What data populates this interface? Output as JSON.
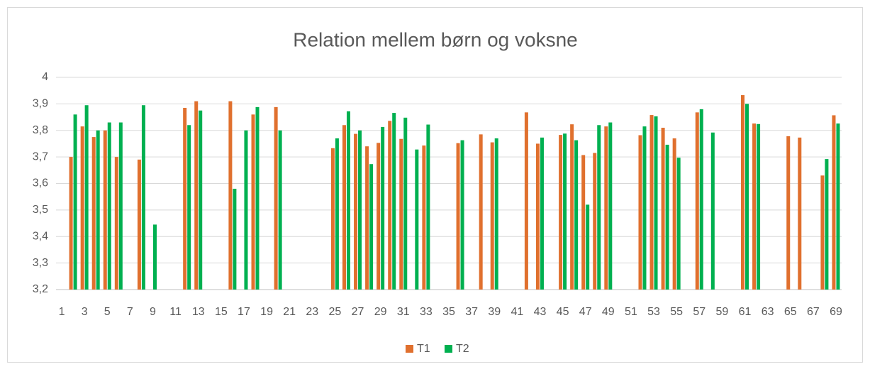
{
  "chart_data": {
    "type": "bar",
    "title": "Relation mellem børn og voksne",
    "categories": [
      1,
      null,
      3,
      null,
      5,
      null,
      7,
      null,
      9,
      null,
      11,
      null,
      13,
      null,
      15,
      null,
      17,
      null,
      19,
      null,
      21,
      null,
      23,
      null,
      25,
      null,
      27,
      null,
      29,
      null,
      31,
      null,
      33,
      null,
      35,
      null,
      37,
      null,
      39,
      null,
      41,
      null,
      43,
      null,
      45,
      null,
      47,
      null,
      49,
      null,
      51,
      null,
      53,
      null,
      55,
      null,
      57,
      null,
      59,
      null,
      61,
      null,
      63,
      null,
      65,
      null,
      67,
      null,
      69
    ],
    "series": [
      {
        "name": "T1",
        "color": "#e0702e",
        "values": [
          null,
          3.7,
          3.815,
          3.775,
          3.8,
          3.7,
          null,
          3.69,
          null,
          null,
          null,
          3.885,
          3.91,
          null,
          null,
          3.91,
          null,
          3.86,
          null,
          3.888,
          null,
          null,
          null,
          null,
          3.733,
          3.82,
          3.787,
          3.74,
          3.753,
          3.836,
          3.768,
          null,
          3.743,
          null,
          null,
          3.752,
          null,
          3.785,
          3.755,
          null,
          null,
          3.868,
          3.75,
          null,
          3.783,
          3.823,
          3.707,
          3.715,
          3.815,
          null,
          null,
          3.782,
          3.858,
          3.81,
          3.77,
          null,
          3.868,
          null,
          null,
          null,
          3.933,
          3.826,
          null,
          null,
          3.778,
          3.773,
          null,
          3.63,
          3.857
        ]
      },
      {
        "name": "T2",
        "color": "#00b050",
        "values": [
          null,
          3.86,
          3.895,
          3.8,
          3.83,
          3.83,
          null,
          3.895,
          3.445,
          null,
          null,
          3.82,
          3.875,
          null,
          null,
          3.58,
          3.8,
          3.888,
          null,
          3.8,
          null,
          null,
          null,
          null,
          3.77,
          3.872,
          3.8,
          3.673,
          3.813,
          3.866,
          3.848,
          3.728,
          3.822,
          null,
          null,
          3.763,
          null,
          null,
          3.77,
          null,
          null,
          null,
          3.773,
          null,
          3.788,
          3.763,
          3.52,
          3.82,
          3.83,
          null,
          null,
          3.815,
          3.853,
          3.746,
          3.697,
          null,
          3.88,
          3.792,
          null,
          null,
          3.9,
          3.824,
          null,
          null,
          null,
          null,
          null,
          3.692,
          3.826
        ]
      }
    ],
    "ylim": [
      3.2,
      4
    ],
    "yticks": [
      {
        "value": 3.2,
        "label": "3,2"
      },
      {
        "value": 3.3,
        "label": "3,3"
      },
      {
        "value": 3.4,
        "label": "3,4"
      },
      {
        "value": 3.5,
        "label": "3,5"
      },
      {
        "value": 3.6,
        "label": "3,6"
      },
      {
        "value": 3.7,
        "label": "3,7"
      },
      {
        "value": 3.8,
        "label": "3,8"
      },
      {
        "value": 3.9,
        "label": "3,9"
      },
      4
    ],
    "grid": true,
    "legend": "bottom"
  }
}
